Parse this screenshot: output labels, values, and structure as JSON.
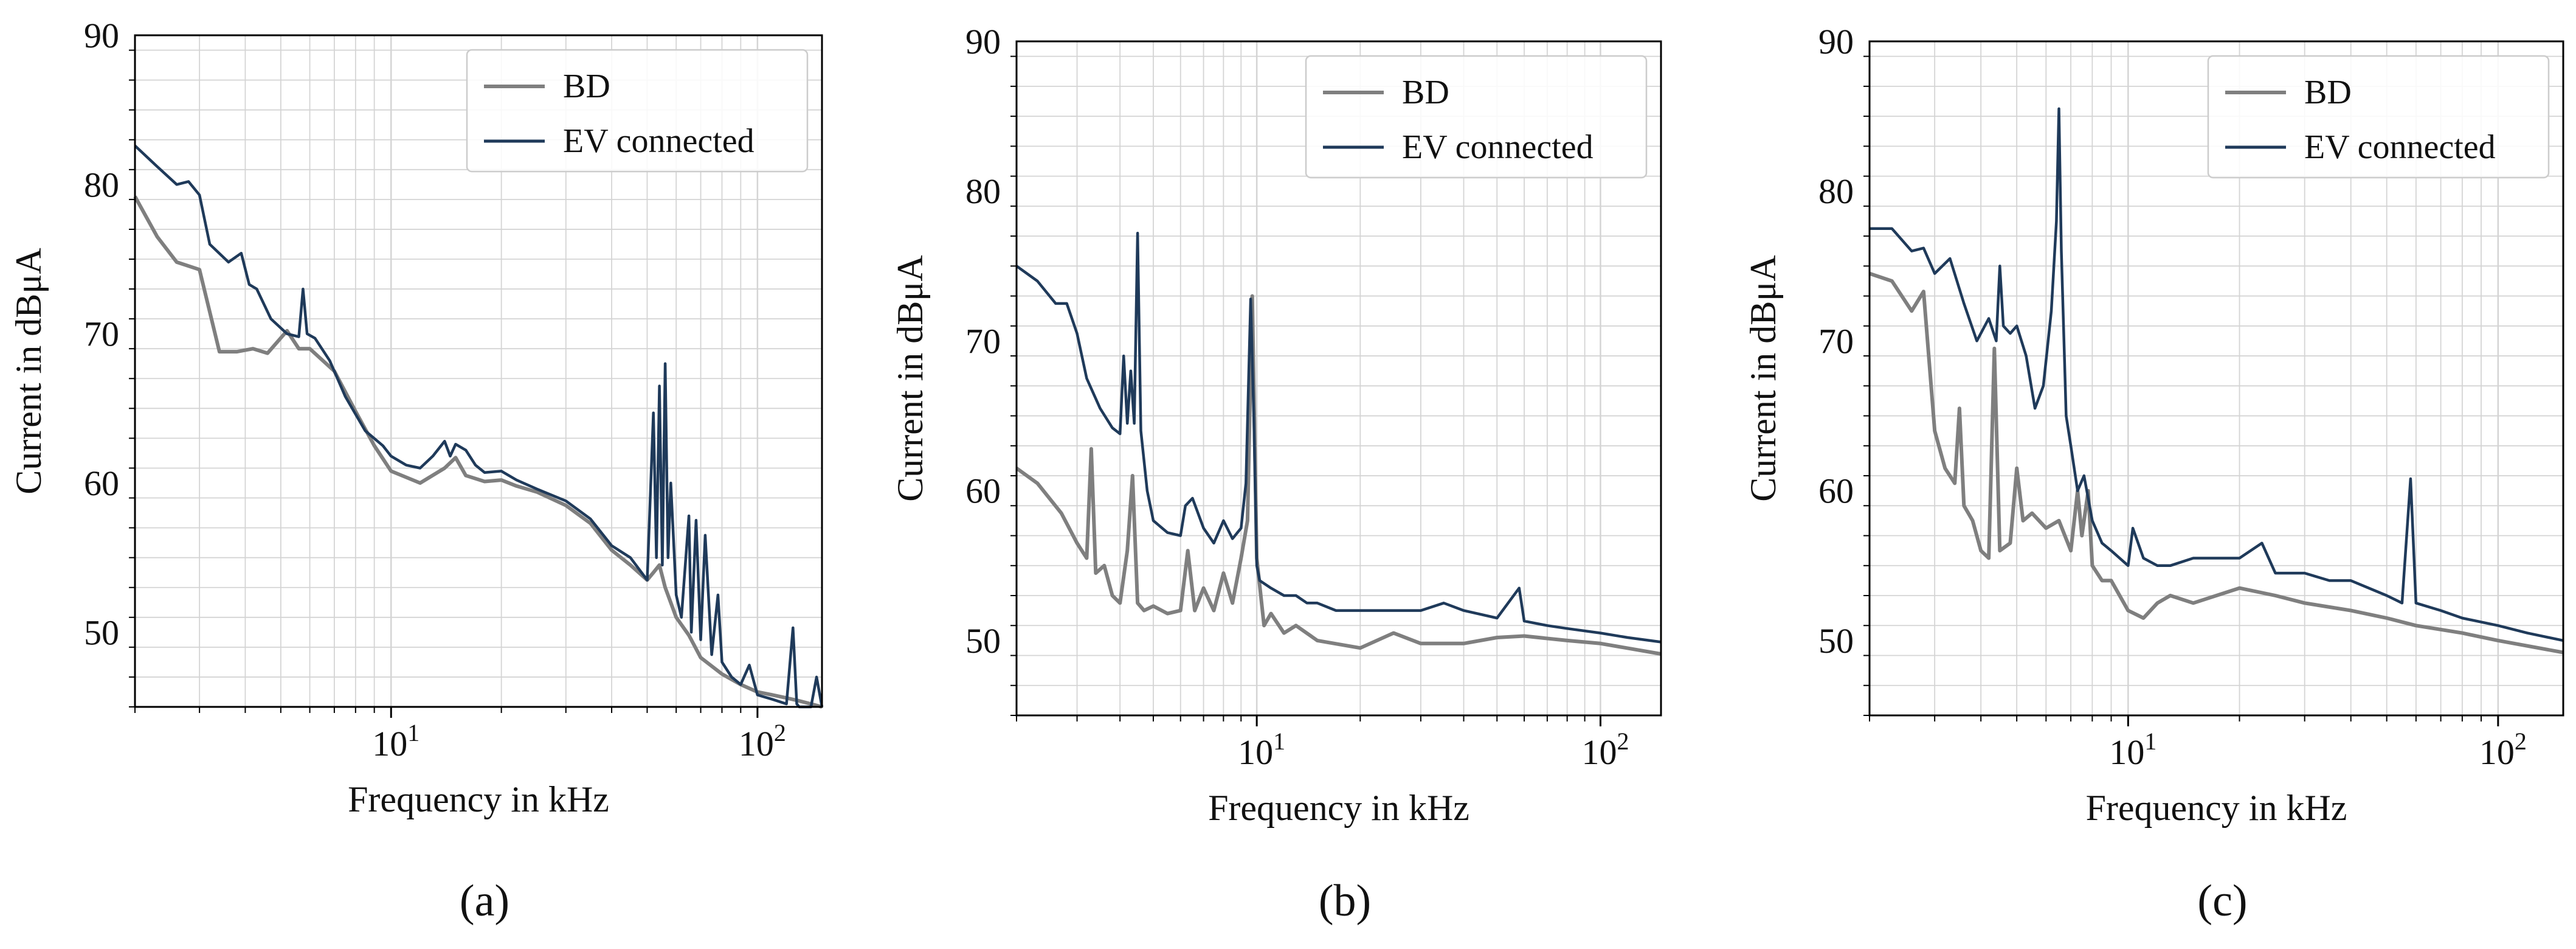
{
  "figure": {
    "colors": {
      "BD": "#7f7f7f",
      "EV connected": "#1f3a5a",
      "grid": "#d4d4d4",
      "axis": "#000000"
    }
  },
  "chart_data": [
    {
      "type": "line",
      "panel_label": "(a)",
      "xlabel": "Frequency in kHz",
      "ylabel": "Current in dBμA",
      "xscale": "log",
      "xlim": [
        2,
        150
      ],
      "ylim": [
        45,
        90
      ],
      "xtick_labels": [
        "10^1",
        "10^2"
      ],
      "ytick_labels": [
        "50",
        "60",
        "70",
        "80",
        "90"
      ],
      "yticks": [
        50,
        60,
        70,
        80,
        90
      ],
      "grid": true,
      "legend": {
        "location": "top-right",
        "entries": [
          "BD",
          "EV connected"
        ]
      },
      "series": [
        {
          "name": "BD",
          "x": [
            2,
            2.3,
            2.6,
            3,
            3.4,
            3.8,
            4.2,
            4.6,
            5.2,
            5.6,
            6,
            7,
            8,
            9,
            10,
            12,
            14,
            15,
            16,
            18,
            20,
            22,
            25,
            30,
            35,
            40,
            45,
            50,
            52,
            54,
            56,
            60,
            65,
            70,
            80,
            90,
            100,
            110,
            120,
            130,
            140,
            150
          ],
          "values": [
            79.2,
            76.5,
            74.8,
            74.3,
            68.8,
            68.8,
            69.0,
            68.7,
            70.2,
            69.0,
            69.0,
            67.5,
            64.8,
            62.5,
            60.8,
            60.0,
            61.0,
            61.7,
            60.5,
            60.1,
            60.2,
            59.8,
            59.4,
            58.5,
            57.3,
            55.5,
            54.5,
            53.5,
            54.0,
            54.5,
            53.0,
            51.0,
            49.8,
            48.3,
            47.2,
            46.5,
            46.0,
            45.8,
            45.6,
            45.4,
            45.2,
            45.0
          ]
        },
        {
          "name": "EV connected",
          "x": [
            2,
            2.3,
            2.6,
            2.8,
            3.0,
            3.2,
            3.6,
            3.9,
            4.1,
            4.3,
            4.7,
            5.2,
            5.6,
            5.75,
            5.9,
            6.2,
            6.8,
            7.5,
            8.5,
            9.5,
            10,
            11,
            12,
            13,
            14,
            14.5,
            15,
            16,
            17,
            18,
            20,
            22,
            25,
            30,
            35,
            40,
            45,
            50,
            52,
            53,
            54,
            55,
            56,
            57,
            58,
            60,
            62,
            65,
            66,
            68,
            70,
            72,
            75,
            78,
            80,
            85,
            90,
            95,
            100,
            110,
            120,
            125,
            128,
            130,
            140,
            145,
            150
          ],
          "values": [
            82.6,
            81.2,
            80.0,
            80.2,
            79.3,
            76.0,
            74.8,
            75.4,
            73.3,
            73.0,
            71.0,
            70.0,
            69.8,
            73.0,
            70.0,
            69.7,
            68.2,
            65.8,
            63.5,
            62.5,
            61.8,
            61.2,
            61.0,
            61.8,
            62.8,
            61.8,
            62.6,
            62.2,
            61.2,
            60.7,
            60.8,
            60.2,
            59.6,
            58.8,
            57.6,
            55.8,
            55.0,
            53.5,
            64.7,
            55.0,
            66.5,
            54.5,
            68.0,
            55.0,
            60.0,
            52.5,
            51.0,
            57.8,
            50.0,
            57.5,
            49.5,
            56.5,
            48.5,
            52.5,
            48.0,
            47.0,
            46.5,
            47.8,
            45.8,
            45.5,
            45.2,
            50.3,
            45.2,
            45.0,
            45.0,
            47.0,
            45.0
          ]
        }
      ]
    },
    {
      "type": "line",
      "panel_label": "(b)",
      "xlabel": "Frequency in kHz",
      "ylabel": "Current in dBμA",
      "xscale": "log",
      "xlim": [
        2,
        150
      ],
      "ylim": [
        45,
        90
      ],
      "xtick_labels": [
        "10^1",
        "10^2"
      ],
      "ytick_labels": [
        "50",
        "60",
        "70",
        "80",
        "90"
      ],
      "yticks": [
        50,
        60,
        70,
        80,
        90
      ],
      "grid": true,
      "legend": {
        "location": "top-right",
        "entries": [
          "BD",
          "EV connected"
        ]
      },
      "series": [
        {
          "name": "BD",
          "x": [
            2,
            2.3,
            2.7,
            3.0,
            3.2,
            3.3,
            3.4,
            3.6,
            3.8,
            4.0,
            4.2,
            4.35,
            4.5,
            4.7,
            5.0,
            5.5,
            6.0,
            6.3,
            6.6,
            7.0,
            7.5,
            8.0,
            8.5,
            9.0,
            9.4,
            9.7,
            10.0,
            10.5,
            11,
            12,
            13,
            15,
            20,
            25,
            30,
            40,
            50,
            60,
            80,
            100,
            150
          ],
          "values": [
            61.5,
            60.5,
            58.5,
            56.5,
            55.5,
            62.8,
            54.5,
            55.0,
            53.0,
            52.5,
            56.0,
            61.0,
            52.5,
            52.0,
            52.3,
            51.8,
            52.0,
            56.0,
            52.0,
            53.5,
            52.0,
            54.5,
            52.5,
            55.5,
            58.0,
            73.0,
            55.5,
            51.0,
            51.8,
            50.5,
            51.0,
            50.0,
            49.5,
            50.5,
            49.8,
            49.8,
            50.2,
            50.3,
            50.0,
            49.8,
            49.1
          ]
        },
        {
          "name": "EV connected",
          "x": [
            2,
            2.3,
            2.6,
            2.8,
            3.0,
            3.2,
            3.5,
            3.8,
            4.0,
            4.1,
            4.2,
            4.3,
            4.4,
            4.5,
            4.6,
            4.8,
            5.0,
            5.5,
            6.0,
            6.2,
            6.5,
            7.0,
            7.5,
            8.0,
            8.5,
            9.0,
            9.3,
            9.6,
            9.8,
            10.0,
            10.2,
            11,
            12,
            13,
            14,
            15,
            17,
            20,
            25,
            30,
            35,
            40,
            50,
            58,
            60,
            70,
            80,
            100,
            120,
            150
          ],
          "values": [
            75.0,
            74.0,
            72.5,
            72.5,
            70.5,
            67.5,
            65.5,
            64.2,
            63.8,
            69.0,
            64.5,
            68.0,
            64.5,
            77.2,
            64.0,
            60.0,
            58.0,
            57.2,
            57.0,
            59.0,
            59.5,
            57.5,
            56.5,
            58.0,
            56.8,
            57.5,
            60.5,
            72.8,
            65.0,
            55.0,
            54.0,
            53.5,
            53.0,
            53.0,
            52.5,
            52.5,
            52.0,
            52.0,
            52.0,
            52.0,
            52.5,
            52.0,
            51.5,
            53.5,
            51.3,
            51.0,
            50.8,
            50.5,
            50.2,
            49.9
          ]
        }
      ]
    },
    {
      "type": "line",
      "panel_label": "(c)",
      "xlabel": "Frequency in kHz",
      "ylabel": "Current in dBμA",
      "xscale": "log",
      "xlim": [
        2,
        150
      ],
      "ylim": [
        45,
        90
      ],
      "xtick_labels": [
        "10^1",
        "10^2"
      ],
      "ytick_labels": [
        "50",
        "60",
        "70",
        "80",
        "90"
      ],
      "yticks": [
        50,
        60,
        70,
        80,
        90
      ],
      "grid": true,
      "legend": {
        "location": "top-right",
        "entries": [
          "BD",
          "EV connected"
        ]
      },
      "series": [
        {
          "name": "BD",
          "x": [
            2,
            2.3,
            2.6,
            2.8,
            3.0,
            3.2,
            3.4,
            3.5,
            3.6,
            3.8,
            4.0,
            4.2,
            4.35,
            4.5,
            4.8,
            5.0,
            5.2,
            5.5,
            6.0,
            6.5,
            7.0,
            7.3,
            7.5,
            7.8,
            8.0,
            8.5,
            9.0,
            10,
            11,
            12,
            13,
            15,
            20,
            25,
            30,
            40,
            50,
            60,
            80,
            100,
            150
          ],
          "values": [
            74.5,
            74.0,
            72.0,
            73.3,
            64.0,
            61.5,
            60.5,
            65.5,
            59.0,
            58.0,
            56.0,
            55.5,
            69.5,
            56.0,
            56.5,
            61.5,
            58.0,
            58.5,
            57.5,
            58.0,
            56.0,
            60.0,
            57.0,
            60.0,
            55.0,
            54.0,
            54.0,
            52.0,
            51.5,
            52.5,
            53.0,
            52.5,
            53.5,
            53.0,
            52.5,
            52.0,
            51.5,
            51.0,
            50.5,
            50.0,
            49.2
          ]
        },
        {
          "name": "EV connected",
          "x": [
            2,
            2.3,
            2.6,
            2.8,
            3.0,
            3.3,
            3.6,
            3.9,
            4.2,
            4.4,
            4.5,
            4.6,
            4.8,
            5.0,
            5.3,
            5.6,
            5.9,
            6.2,
            6.4,
            6.5,
            6.6,
            6.8,
            7.0,
            7.3,
            7.6,
            8.0,
            8.5,
            9.0,
            10,
            10.3,
            11,
            12,
            13,
            15,
            20,
            23,
            25,
            30,
            35,
            40,
            50,
            55,
            58,
            60,
            70,
            80,
            100,
            120,
            150
          ],
          "values": [
            77.5,
            77.5,
            76.0,
            76.2,
            74.5,
            75.5,
            72.5,
            70.0,
            71.5,
            70.0,
            75.0,
            71.0,
            70.5,
            71.0,
            69.0,
            65.5,
            67.0,
            72.0,
            78.0,
            85.5,
            76.0,
            65.0,
            63.0,
            60.0,
            61.0,
            58.0,
            56.5,
            56.0,
            55.0,
            57.5,
            55.5,
            55.0,
            55.0,
            55.5,
            55.5,
            56.5,
            54.5,
            54.5,
            54.0,
            54.0,
            53.0,
            52.5,
            60.8,
            52.5,
            52.0,
            51.5,
            51.0,
            50.5,
            50.0
          ]
        }
      ]
    }
  ]
}
